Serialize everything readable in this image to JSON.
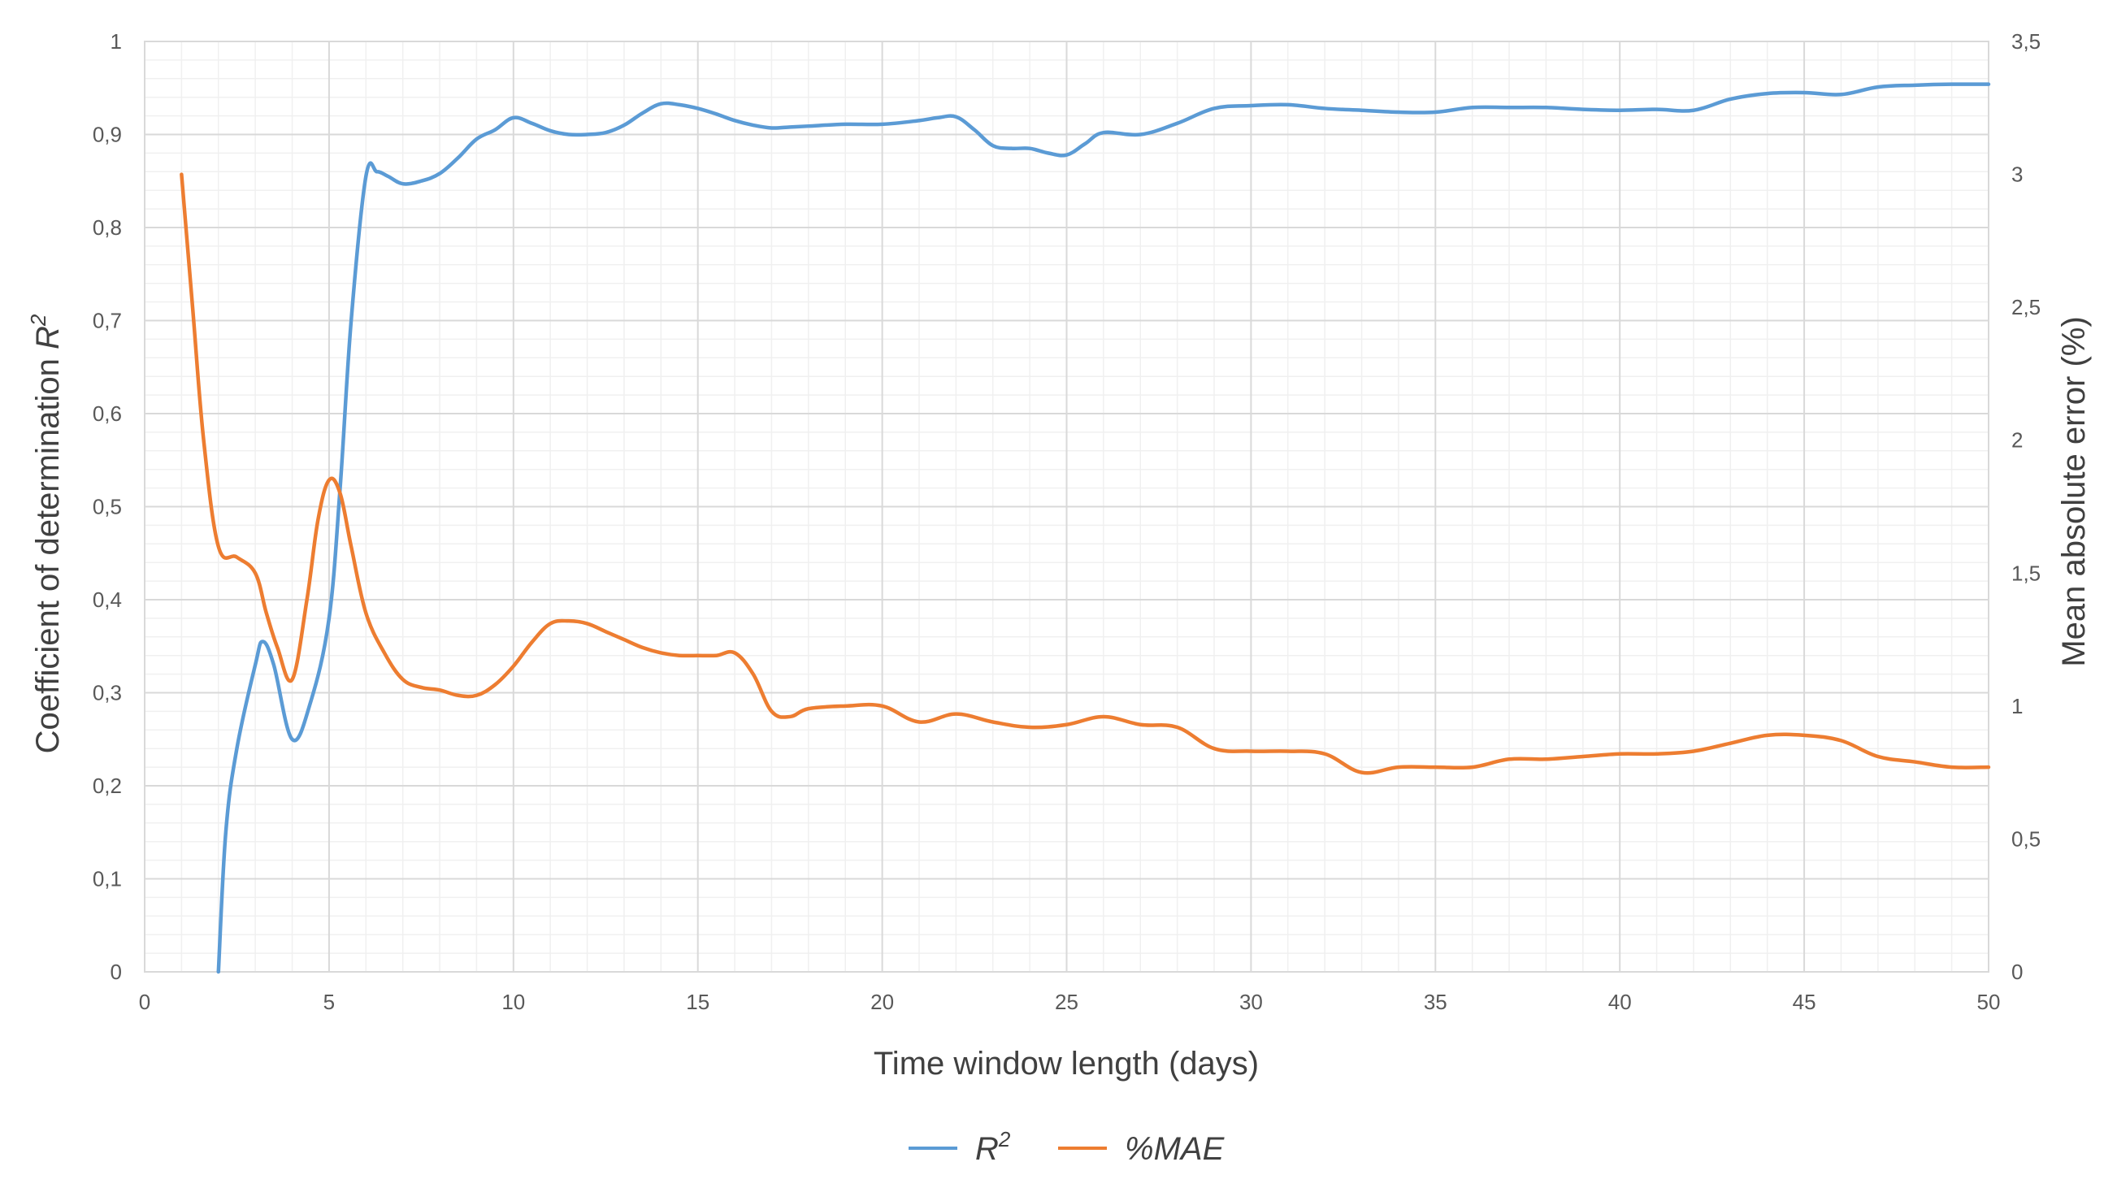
{
  "chart_data": {
    "type": "line",
    "xlabel": "Time window length (days)",
    "ylabel_left": "Coefficient of determination",
    "ylabel_left_symbol": "R",
    "ylabel_left_superscript": "2",
    "ylabel_right": "Mean absolute error (%)",
    "xlim": [
      0,
      50
    ],
    "ylim_left": [
      0,
      1
    ],
    "ylim_right": [
      0,
      3.5
    ],
    "x_ticks": [
      "0",
      "5",
      "10",
      "15",
      "20",
      "25",
      "30",
      "35",
      "40",
      "45",
      "50"
    ],
    "y_left_ticks": [
      "0",
      "0,1",
      "0,2",
      "0,3",
      "0,4",
      "0,5",
      "0,6",
      "0,7",
      "0,8",
      "0,9",
      "1"
    ],
    "y_right_ticks": [
      "0",
      "0,5",
      "1",
      "1,5",
      "2",
      "2,5",
      "3",
      "3,5"
    ],
    "grid": true,
    "legend_position": "bottom",
    "series": [
      {
        "name": "R",
        "name_superscript": "2",
        "axis": "left",
        "color": "#5B9BD5",
        "x": [
          2,
          2.2,
          2.5,
          3,
          3.2,
          3.5,
          4,
          4.5,
          5,
          5.3,
          5.6,
          6,
          6.3,
          6.6,
          7,
          7.5,
          8,
          8.5,
          9,
          9.5,
          10,
          10.5,
          11,
          11.5,
          12,
          12.5,
          13,
          13.5,
          14,
          14.5,
          15,
          15.5,
          16,
          16.5,
          17,
          17.5,
          18,
          19,
          20,
          21,
          21.5,
          22,
          22.5,
          23,
          23.5,
          24,
          24.5,
          25,
          25.5,
          26,
          27,
          28,
          29,
          30,
          31,
          32,
          33,
          34,
          35,
          36,
          37,
          38,
          39,
          40,
          41,
          42,
          43,
          44,
          45,
          46,
          47,
          48,
          49,
          50
        ],
        "y": [
          0,
          0.15,
          0.24,
          0.33,
          0.355,
          0.33,
          0.25,
          0.29,
          0.38,
          0.52,
          0.7,
          0.855,
          0.86,
          0.855,
          0.847,
          0.85,
          0.858,
          0.875,
          0.895,
          0.905,
          0.918,
          0.912,
          0.904,
          0.9,
          0.9,
          0.902,
          0.91,
          0.923,
          0.933,
          0.932,
          0.928,
          0.922,
          0.915,
          0.91,
          0.907,
          0.908,
          0.909,
          0.911,
          0.911,
          0.915,
          0.918,
          0.919,
          0.905,
          0.888,
          0.885,
          0.885,
          0.88,
          0.878,
          0.89,
          0.902,
          0.9,
          0.912,
          0.928,
          0.931,
          0.932,
          0.928,
          0.926,
          0.924,
          0.924,
          0.929,
          0.929,
          0.929,
          0.927,
          0.926,
          0.927,
          0.926,
          0.938,
          0.944,
          0.945,
          0.943,
          0.951,
          0.953,
          0.954,
          0.954
        ]
      },
      {
        "name": "%MAE",
        "axis": "right",
        "color": "#ED7D31",
        "x": [
          1,
          1.3,
          1.6,
          2,
          2.5,
          3,
          3.3,
          3.6,
          4,
          4.4,
          4.7,
          5,
          5.3,
          5.6,
          6,
          6.5,
          7,
          7.5,
          8,
          8.5,
          9,
          9.5,
          10,
          10.5,
          11,
          11.5,
          12,
          12.5,
          13,
          13.5,
          14,
          14.5,
          15,
          15.5,
          16,
          16.5,
          17,
          17.5,
          18,
          19,
          20,
          21,
          22,
          23,
          24,
          25,
          26,
          27,
          28,
          29,
          30,
          31,
          32,
          33,
          34,
          35,
          36,
          37,
          38,
          39,
          40,
          41,
          42,
          43,
          44,
          45,
          46,
          47,
          48,
          49,
          50
        ],
        "y": [
          3.0,
          2.5,
          2.0,
          1.6,
          1.56,
          1.5,
          1.35,
          1.22,
          1.1,
          1.4,
          1.7,
          1.85,
          1.8,
          1.6,
          1.35,
          1.2,
          1.1,
          1.07,
          1.06,
          1.04,
          1.04,
          1.08,
          1.15,
          1.24,
          1.31,
          1.32,
          1.31,
          1.28,
          1.25,
          1.22,
          1.2,
          1.19,
          1.19,
          1.19,
          1.2,
          1.12,
          0.98,
          0.96,
          0.99,
          1.0,
          1.0,
          0.94,
          0.97,
          0.94,
          0.92,
          0.93,
          0.96,
          0.93,
          0.92,
          0.84,
          0.83,
          0.83,
          0.82,
          0.75,
          0.77,
          0.77,
          0.77,
          0.8,
          0.8,
          0.81,
          0.82,
          0.82,
          0.83,
          0.86,
          0.89,
          0.89,
          0.87,
          0.81,
          0.79,
          0.77,
          0.77
        ]
      }
    ]
  }
}
